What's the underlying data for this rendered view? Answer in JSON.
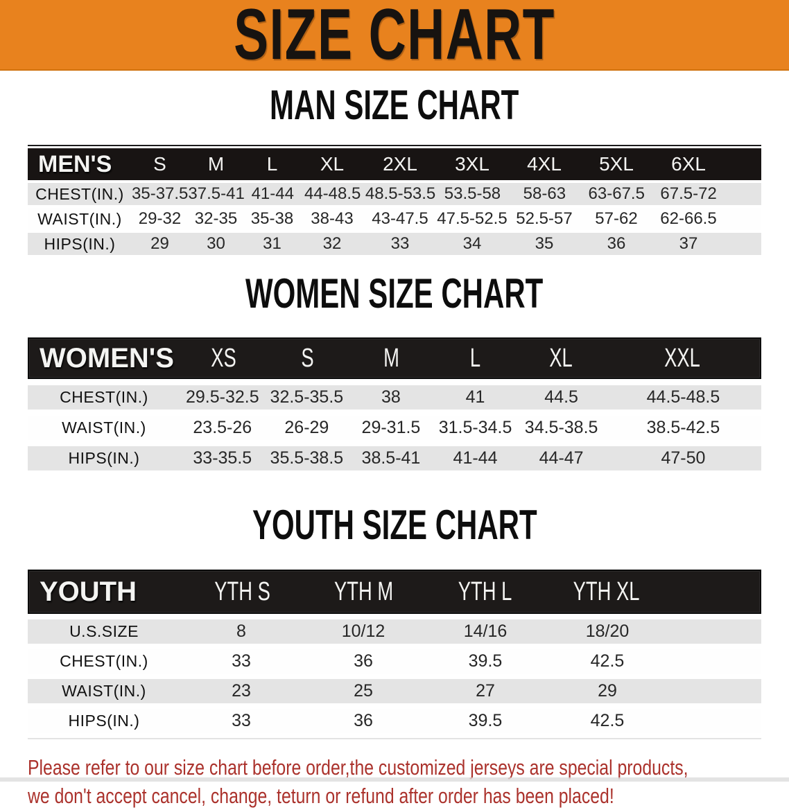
{
  "banner": {
    "title": "SIZE CHART",
    "bg_color": "#E8821E"
  },
  "sections": [
    {
      "heading": "MAN SIZE CHART",
      "table": {
        "label": "MEN'S",
        "columns": [
          "S",
          "M",
          "L",
          "XL",
          "2XL",
          "3XL",
          "4XL",
          "5XL",
          "6XL"
        ],
        "rows": [
          {
            "label": "CHEST(IN.)",
            "values": [
              "35-37.5",
              "37.5-41",
              "41-44",
              "44-48.5",
              "48.5-53.5",
              "53.5-58",
              "58-63",
              "63-67.5",
              "67.5-72"
            ]
          },
          {
            "label": "WAIST(IN.)",
            "values": [
              "29-32",
              "32-35",
              "35-38",
              "38-43",
              "43-47.5",
              "47.5-52.5",
              "52.5-57",
              "57-62",
              "62-66.5"
            ]
          },
          {
            "label": "HIPS(IN.)",
            "values": [
              "29",
              "30",
              "31",
              "32",
              "33",
              "34",
              "35",
              "36",
              "37"
            ]
          }
        ]
      }
    },
    {
      "heading": "WOMEN SIZE CHART",
      "table": {
        "label": "WOMEN'S",
        "columns": [
          "XS",
          "S",
          "M",
          "L",
          "XL",
          "XXL"
        ],
        "rows": [
          {
            "label": "CHEST(IN.)",
            "values": [
              "29.5-32.5",
              "32.5-35.5",
              "38",
              "41",
              "44.5",
              "44.5-48.5"
            ]
          },
          {
            "label": "WAIST(IN.)",
            "values": [
              "23.5-26",
              "26-29",
              "29-31.5",
              "31.5-34.5",
              "34.5-38.5",
              "38.5-42.5"
            ]
          },
          {
            "label": "HIPS(IN.)",
            "values": [
              "33-35.5",
              "35.5-38.5",
              "38.5-41",
              "41-44",
              "44-47",
              "47-50"
            ]
          }
        ]
      }
    },
    {
      "heading": "YOUTH SIZE CHART",
      "table": {
        "label": "YOUTH",
        "columns": [
          "YTH S",
          "YTH M",
          "YTH L",
          "YTH XL"
        ],
        "rows": [
          {
            "label": "U.S.SIZE",
            "values": [
              "8",
              "10/12",
              "14/16",
              "18/20"
            ]
          },
          {
            "label": "CHEST(IN.)",
            "values": [
              "33",
              "36",
              "39.5",
              "42.5"
            ]
          },
          {
            "label": "WAIST(IN.)",
            "values": [
              "23",
              "25",
              "27",
              "29"
            ]
          },
          {
            "label": "HIPS(IN.)",
            "values": [
              "33",
              "36",
              "39.5",
              "42.5"
            ]
          }
        ]
      }
    }
  ],
  "footer": {
    "line1": "Please refer to our size chart before order,the customized jerseys are special products,",
    "line2": "we don't accept cancel, change, teturn or refund after order has been placed!",
    "text_color": "#AB322C"
  }
}
